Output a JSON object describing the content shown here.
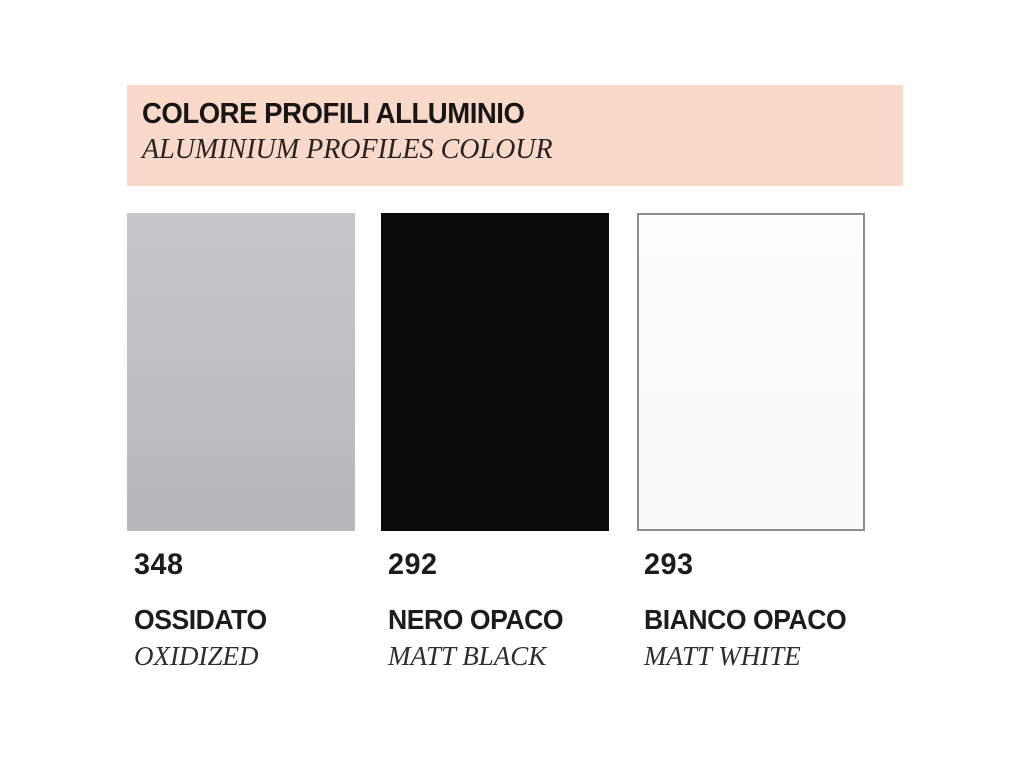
{
  "header": {
    "title": "COLORE PROFILI ALLUMINIO",
    "subtitle": "ALUMINIUM PROFILES COLOUR",
    "background_color": "#fbd9c9"
  },
  "swatches": [
    {
      "code": "348",
      "name_italian": "OSSIDATO",
      "name_english": "OXIDIZED",
      "swatch_color_top": "#c6c7c9",
      "swatch_color_bottom": "#b6b7bb",
      "border_color": ""
    },
    {
      "code": "292",
      "name_italian": "NERO OPACO",
      "name_english": "MATT BLACK",
      "swatch_color_top": "#0b0b0b",
      "swatch_color_bottom": "#0b0b0b",
      "border_color": ""
    },
    {
      "code": "293",
      "name_italian": "BIANCO OPACO",
      "name_english": "MATT WHITE",
      "swatch_color_top": "#fdfdfd",
      "swatch_color_bottom": "#fafafa",
      "border_color": "#8d8d8d"
    }
  ]
}
